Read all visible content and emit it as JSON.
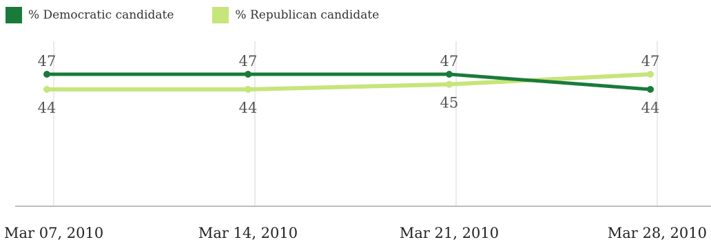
{
  "chart_data": {
    "type": "line",
    "categories": [
      "Mar 07, 2010",
      "Mar 14, 2010",
      "Mar 21, 2010",
      "Mar 28, 2010"
    ],
    "series": [
      {
        "name": "% Democratic candidate",
        "values": [
          47,
          47,
          47,
          44
        ],
        "color": "#1a7a3a",
        "label_position": "above-until-last"
      },
      {
        "name": "% Republican candidate",
        "values": [
          44,
          44,
          45,
          47
        ],
        "color": "#c6e57a",
        "label_position": "below-until-last"
      }
    ],
    "title": "",
    "xlabel": "",
    "ylabel": "",
    "ylim": [
      18,
      50
    ],
    "grid": "vertical",
    "legend_position": "top-left"
  }
}
